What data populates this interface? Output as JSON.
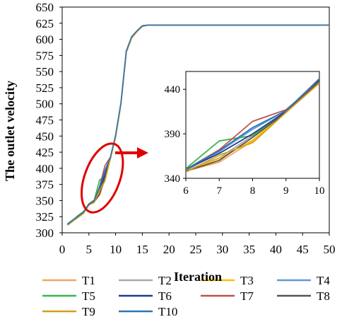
{
  "chart_data": {
    "type": "line",
    "title": "",
    "xlabel": "Iteration",
    "ylabel": "The outlet velocity",
    "xlim": [
      0,
      50
    ],
    "ylim": [
      300,
      650
    ],
    "xticks": [
      0,
      5,
      10,
      15,
      20,
      25,
      30,
      35,
      40,
      45,
      50
    ],
    "yticks": [
      300,
      325,
      350,
      375,
      400,
      425,
      450,
      475,
      500,
      525,
      550,
      575,
      600,
      625,
      650
    ],
    "x": [
      1,
      2,
      3,
      4,
      5,
      6,
      7,
      8,
      9,
      10,
      11,
      12,
      13,
      14,
      15,
      16,
      17,
      18,
      19,
      20,
      21,
      22,
      23,
      24,
      25,
      26,
      27,
      28,
      29,
      30,
      31,
      32,
      33,
      34,
      35,
      36,
      37,
      38,
      39,
      40,
      41,
      42,
      43,
      44,
      45,
      46,
      47,
      48,
      49,
      50
    ],
    "series": [
      {
        "name": "T1",
        "color": "#f4a460",
        "values": [
          312,
          318,
          324,
          330,
          343,
          348,
          358,
          382,
          415,
          449,
          500,
          580,
          602,
          612,
          620,
          622,
          622,
          622,
          622,
          622,
          622,
          622,
          622,
          622,
          622,
          622,
          622,
          622,
          622,
          622,
          622,
          622,
          622,
          622,
          622,
          622,
          622,
          622,
          622,
          622,
          622,
          622,
          622,
          622,
          622,
          622,
          622,
          622,
          622,
          622
        ]
      },
      {
        "name": "T2",
        "color": "#a9a9a9",
        "values": [
          313,
          319,
          325,
          331,
          343,
          349,
          363,
          388,
          415,
          450,
          501,
          581,
          603,
          612,
          620,
          622,
          622,
          622,
          622,
          622,
          622,
          622,
          622,
          622,
          622,
          622,
          622,
          622,
          622,
          622,
          622,
          622,
          622,
          622,
          622,
          622,
          622,
          622,
          622,
          622,
          622,
          622,
          622,
          622,
          622,
          622,
          622,
          622,
          622,
          622
        ]
      },
      {
        "name": "T3",
        "color": "#ffc000",
        "values": [
          312,
          318,
          324,
          331,
          344,
          348,
          362,
          383,
          414,
          448,
          500,
          580,
          602,
          612,
          620,
          622,
          622,
          622,
          622,
          622,
          622,
          622,
          622,
          622,
          622,
          622,
          622,
          622,
          622,
          622,
          622,
          622,
          622,
          622,
          622,
          622,
          622,
          622,
          622,
          622,
          622,
          622,
          622,
          622,
          622,
          622,
          622,
          622,
          622,
          622
        ]
      },
      {
        "name": "T4",
        "color": "#5b9bd5",
        "values": [
          314,
          320,
          326,
          332,
          345,
          350,
          370,
          395,
          416,
          451,
          501,
          582,
          604,
          613,
          621,
          622,
          622,
          622,
          622,
          622,
          622,
          622,
          622,
          622,
          622,
          622,
          622,
          622,
          622,
          622,
          622,
          622,
          622,
          622,
          622,
          622,
          622,
          622,
          622,
          622,
          622,
          622,
          622,
          622,
          622,
          622,
          622,
          622,
          622,
          622
        ]
      },
      {
        "name": "T5",
        "color": "#3cb44b",
        "values": [
          314,
          320,
          327,
          333,
          345,
          351,
          382,
          388,
          415,
          450,
          501,
          582,
          604,
          613,
          621,
          622,
          622,
          622,
          622,
          622,
          622,
          622,
          622,
          622,
          622,
          622,
          622,
          622,
          622,
          622,
          622,
          622,
          622,
          622,
          622,
          622,
          622,
          622,
          622,
          622,
          622,
          622,
          622,
          622,
          622,
          622,
          622,
          622,
          622,
          622
        ]
      },
      {
        "name": "T6",
        "color": "#1f3a93",
        "values": [
          313,
          319,
          326,
          332,
          344,
          350,
          368,
          390,
          415,
          450,
          501,
          581,
          603,
          613,
          621,
          622,
          622,
          622,
          622,
          622,
          622,
          622,
          622,
          622,
          622,
          622,
          622,
          622,
          622,
          622,
          622,
          622,
          622,
          622,
          622,
          622,
          622,
          622,
          622,
          622,
          622,
          622,
          622,
          622,
          622,
          622,
          622,
          622,
          622,
          622
        ]
      },
      {
        "name": "T7",
        "color": "#c0504d",
        "values": [
          313,
          319,
          326,
          332,
          345,
          350,
          372,
          404,
          417,
          449,
          501,
          581,
          603,
          613,
          621,
          622,
          622,
          622,
          622,
          622,
          622,
          622,
          622,
          622,
          622,
          622,
          622,
          622,
          622,
          622,
          622,
          622,
          622,
          622,
          622,
          622,
          622,
          622,
          622,
          622,
          622,
          622,
          622,
          622,
          622,
          622,
          622,
          622,
          622,
          622
        ]
      },
      {
        "name": "T8",
        "color": "#555555",
        "values": [
          312,
          318,
          325,
          331,
          343,
          348,
          360,
          386,
          414,
          449,
          500,
          580,
          602,
          612,
          620,
          622,
          622,
          622,
          622,
          622,
          622,
          622,
          622,
          622,
          622,
          622,
          622,
          622,
          622,
          622,
          622,
          622,
          622,
          622,
          622,
          622,
          622,
          622,
          622,
          622,
          622,
          622,
          622,
          622,
          622,
          622,
          622,
          622,
          622,
          622
        ]
      },
      {
        "name": "T9",
        "color": "#d4a017",
        "values": [
          312,
          318,
          324,
          330,
          343,
          347,
          366,
          380,
          414,
          447,
          500,
          580,
          602,
          612,
          620,
          622,
          622,
          622,
          622,
          622,
          622,
          622,
          622,
          622,
          622,
          622,
          622,
          622,
          622,
          622,
          622,
          622,
          622,
          622,
          622,
          622,
          622,
          622,
          622,
          622,
          622,
          622,
          622,
          622,
          622,
          622,
          622,
          622,
          622,
          622
        ]
      },
      {
        "name": "T10",
        "color": "#2e75b6",
        "values": [
          313,
          320,
          326,
          332,
          344,
          350,
          371,
          397,
          416,
          452,
          502,
          582,
          604,
          613,
          621,
          622,
          622,
          622,
          622,
          622,
          622,
          622,
          622,
          622,
          622,
          622,
          622,
          622,
          622,
          622,
          622,
          622,
          622,
          622,
          622,
          622,
          622,
          622,
          622,
          622,
          622,
          622,
          622,
          622,
          622,
          622,
          622,
          622,
          622,
          622
        ]
      }
    ],
    "inset": {
      "x_range": [
        6,
        10
      ],
      "y_range": [
        340,
        460
      ],
      "xticks": [
        "6",
        "7",
        "8",
        "9",
        "10"
      ],
      "yticks": [
        "340",
        "390",
        "440"
      ]
    },
    "annotation": {
      "highlight_x_range": [
        5,
        10
      ],
      "highlight_y_range": [
        340,
        430
      ],
      "highlight_color": "#e00000"
    },
    "grid": false,
    "legend_position": "bottom"
  }
}
